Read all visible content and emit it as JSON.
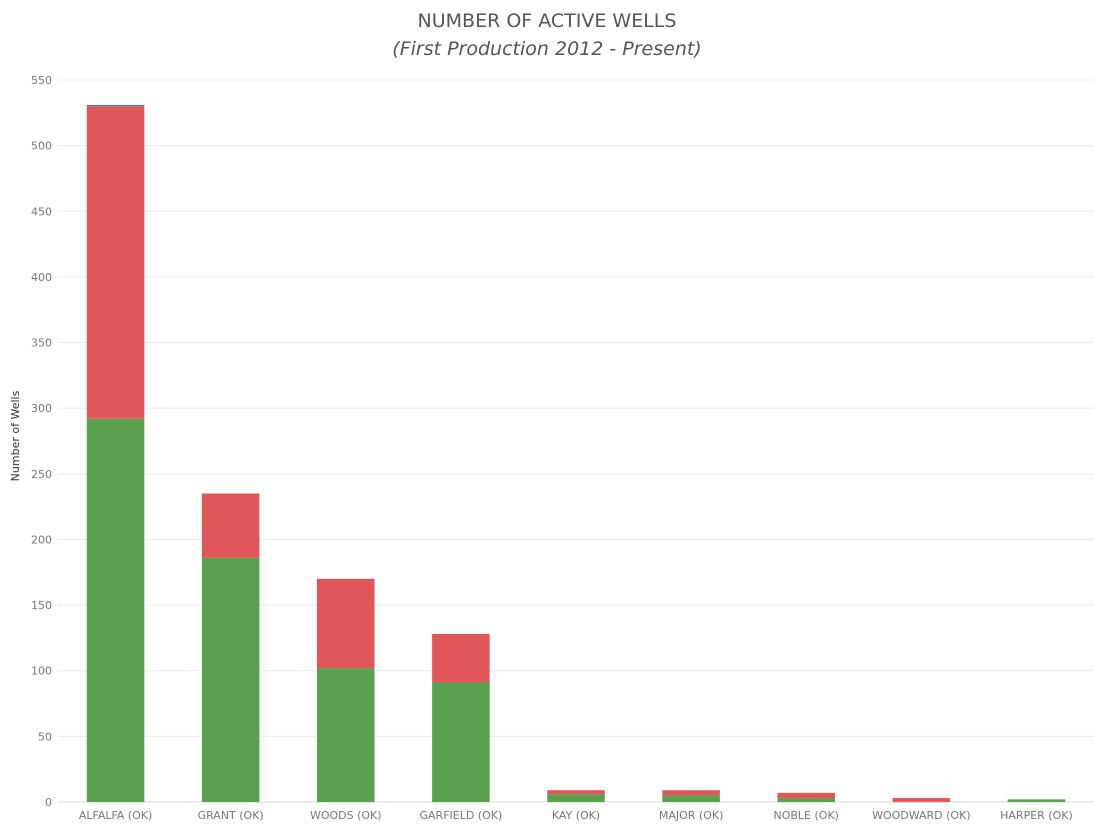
{
  "chart_data": {
    "type": "bar",
    "stacked": true,
    "title": "NUMBER OF ACTIVE WELLS",
    "subtitle": "(First Production 2012 - Present)",
    "xlabel": "",
    "ylabel": "Number of Wells",
    "ylim": [
      0,
      550
    ],
    "yticks": [
      0,
      50,
      100,
      150,
      200,
      250,
      300,
      350,
      400,
      450,
      500,
      550
    ],
    "grid": true,
    "categories": [
      "ALFALFA (OK)",
      "GRANT (OK)",
      "WOODS (OK)",
      "GARFIELD (OK)",
      "KAY (OK)",
      "MAJOR (OK)",
      "NOBLE (OK)",
      "WOODWARD (OK)",
      "HARPER (OK)"
    ],
    "series": [
      {
        "color": "#59a14f",
        "values": [
          292,
          186,
          102,
          91,
          6,
          5,
          3,
          0,
          2
        ]
      },
      {
        "color": "#e15759",
        "values": [
          238,
          49,
          68,
          37,
          3,
          4,
          4,
          3,
          0
        ]
      },
      {
        "color": "#4e79a7",
        "values": [
          1,
          0,
          0,
          0,
          0,
          0,
          0,
          0,
          0
        ]
      }
    ]
  }
}
